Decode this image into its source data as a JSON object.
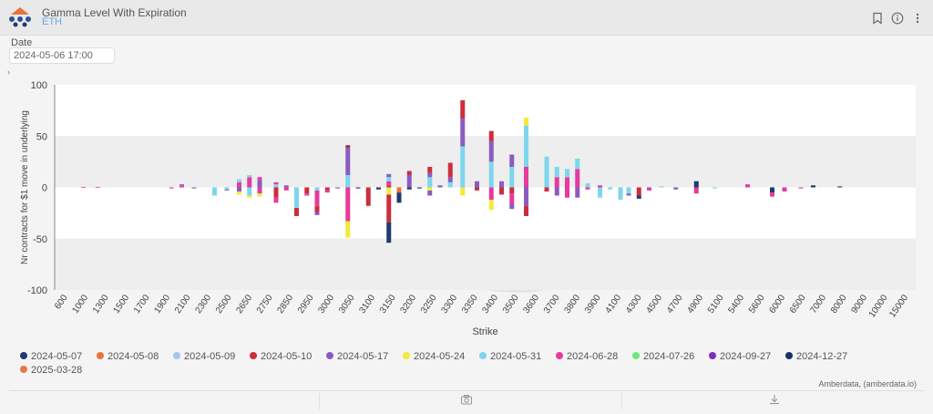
{
  "header": {
    "title": "Gamma Level With Expiration",
    "subtitle": "ETH",
    "icons": [
      "bookmark-icon",
      "info-icon",
      "more-vertical-icon"
    ]
  },
  "date": {
    "label": "Date",
    "value": "2024-05-06 17:00"
  },
  "credit": "Amberdata, (amberdata.io)",
  "footer": {
    "icons": [
      "camera-icon",
      "download-icon"
    ]
  },
  "chart_data": {
    "type": "bar",
    "stacked": true,
    "xlabel": "Strike",
    "ylabel": "Nr contracts for $1 move in underlying",
    "ylim": [
      -100,
      100
    ],
    "yticks": [
      100,
      50,
      0,
      -50,
      -100
    ],
    "categories": [
      "600",
      "1000",
      "1300",
      "1500",
      "1700",
      "1900",
      "2100",
      "2300",
      "2500",
      "2650",
      "2750",
      "2850",
      "2950",
      "3000",
      "3050",
      "3100",
      "3150",
      "3200",
      "3250",
      "3300",
      "3350",
      "3400",
      "3500",
      "3600",
      "3700",
      "3800",
      "3900",
      "4100",
      "4300",
      "4500",
      "4700",
      "4900",
      "5100",
      "5400",
      "5600",
      "6000",
      "6500",
      "7000",
      "8000",
      "9000",
      "10000",
      "15000"
    ],
    "legend": [
      "2024-05-07",
      "2024-05-08",
      "2024-05-09",
      "2024-05-10",
      "2024-05-17",
      "2024-05-24",
      "2024-05-31",
      "2024-06-28",
      "2024-07-26",
      "2024-09-27",
      "2024-12-27",
      "2025-03-28"
    ],
    "colors": {
      "2024-05-07": "#1f3a6e",
      "2024-05-08": "#e8743b",
      "2024-05-09": "#a3c6f0",
      "2024-05-10": "#cc2e3e",
      "2024-05-17": "#8a5cc0",
      "2024-05-24": "#f2ea3c",
      "2024-05-31": "#7dd6ee",
      "2024-06-28": "#e63a9e",
      "2024-07-26": "#6ee87a",
      "2024-09-27": "#7a2fc0",
      "2024-12-27": "#1a3260",
      "2025-03-28": "#e8784a"
    },
    "bars": [
      {
        "x": 1.4,
        "segs": [
          [
            "2024-06-28",
            0.5
          ]
        ]
      },
      {
        "x": 2.1,
        "segs": [
          [
            "2024-06-28",
            0.5
          ]
        ]
      },
      {
        "x": 5.7,
        "segs": [
          [
            "2024-06-28",
            -1.0
          ]
        ]
      },
      {
        "x": 6.2,
        "segs": [
          [
            "2024-06-28",
            2
          ],
          [
            "2024-05-17",
            1
          ]
        ]
      },
      {
        "x": 6.8,
        "segs": [
          [
            "2024-05-17",
            -1.0
          ]
        ]
      },
      {
        "x": 7.8,
        "segs": [
          [
            "2024-05-31",
            -8
          ]
        ]
      },
      {
        "x": 8.4,
        "segs": [
          [
            "2024-05-31",
            -2
          ],
          [
            "2024-05-17",
            -1
          ]
        ]
      },
      {
        "x": 9.0,
        "segs": [
          [
            "2024-06-28",
            5
          ],
          [
            "2024-05-31",
            3
          ],
          [
            "2024-05-17",
            -4
          ],
          [
            "2024-05-24",
            -3
          ]
        ]
      },
      {
        "x": 9.5,
        "segs": [
          [
            "2024-06-28",
            10
          ],
          [
            "2024-05-31",
            2
          ],
          [
            "2024-05-31",
            -8
          ],
          [
            "2024-05-24",
            -2
          ]
        ]
      },
      {
        "x": 10.0,
        "segs": [
          [
            "2024-05-17",
            7
          ],
          [
            "2024-06-28",
            3
          ],
          [
            "2024-06-28",
            -6
          ],
          [
            "2024-05-24",
            -3
          ]
        ]
      },
      {
        "x": 10.8,
        "segs": [
          [
            "2024-05-31",
            3
          ],
          [
            "2024-06-28",
            2
          ],
          [
            "2024-05-10",
            -10
          ],
          [
            "2024-06-28",
            -5
          ]
        ]
      },
      {
        "x": 11.3,
        "segs": [
          [
            "2024-05-17",
            2
          ],
          [
            "2024-06-28",
            -3
          ]
        ]
      },
      {
        "x": 11.8,
        "segs": [
          [
            "2024-05-31",
            -20
          ],
          [
            "2024-05-10",
            -8
          ]
        ]
      },
      {
        "x": 12.3,
        "segs": [
          [
            "2024-05-10",
            -6
          ],
          [
            "2024-06-28",
            -2
          ]
        ]
      },
      {
        "x": 12.8,
        "segs": [
          [
            "2024-05-31",
            -3
          ],
          [
            "2024-06-28",
            -15
          ],
          [
            "2024-05-10",
            -6
          ],
          [
            "2024-05-17",
            -3
          ]
        ]
      },
      {
        "x": 13.3,
        "segs": [
          [
            "2024-05-10",
            -3
          ],
          [
            "2024-06-28",
            -2
          ]
        ]
      },
      {
        "x": 13.8,
        "segs": [
          [
            "2024-05-17",
            -1
          ]
        ]
      },
      {
        "x": 14.3,
        "segs": [
          [
            "2024-05-31",
            12
          ],
          [
            "2024-05-17",
            26
          ],
          [
            "2024-05-10",
            2
          ],
          [
            "2024-12-27",
            1
          ],
          [
            "2024-06-28",
            -33
          ],
          [
            "2024-05-24",
            -16
          ]
        ]
      },
      {
        "x": 14.8,
        "segs": [
          [
            "2024-05-07",
            -1
          ]
        ]
      },
      {
        "x": 15.3,
        "segs": [
          [
            "2024-05-10",
            -18
          ]
        ]
      },
      {
        "x": 15.8,
        "segs": [
          [
            "2024-05-07",
            -2
          ]
        ]
      },
      {
        "x": 16.3,
        "segs": [
          [
            "2024-05-10",
            2
          ],
          [
            "2024-06-28",
            4
          ],
          [
            "2024-05-31",
            4
          ],
          [
            "2024-05-17",
            3
          ],
          [
            "2024-05-24",
            -7
          ],
          [
            "2024-05-10",
            -27
          ],
          [
            "2024-05-07",
            -20
          ]
        ]
      },
      {
        "x": 16.8,
        "segs": [
          [
            "2024-05-08",
            -5
          ],
          [
            "2024-05-07",
            -10
          ]
        ]
      },
      {
        "x": 17.3,
        "segs": [
          [
            "2024-05-17",
            12
          ],
          [
            "2024-05-10",
            4
          ],
          [
            "2024-05-07",
            -2
          ]
        ]
      },
      {
        "x": 17.8,
        "segs": [
          [
            "2024-05-07",
            -1
          ]
        ]
      },
      {
        "x": 18.3,
        "segs": [
          [
            "2024-05-31",
            10
          ],
          [
            "2024-05-17",
            4
          ],
          [
            "2024-05-10",
            6
          ],
          [
            "2024-05-24",
            -3
          ],
          [
            "2024-05-17",
            -5
          ]
        ]
      },
      {
        "x": 18.8,
        "segs": [
          [
            "2024-05-17",
            2
          ]
        ]
      },
      {
        "x": 19.3,
        "segs": [
          [
            "2024-05-31",
            5
          ],
          [
            "2024-05-17",
            5
          ],
          [
            "2024-05-10",
            14
          ]
        ]
      },
      {
        "x": 19.9,
        "segs": [
          [
            "2024-05-31",
            40
          ],
          [
            "2024-05-17",
            27
          ],
          [
            "2024-05-10",
            18
          ],
          [
            "2024-05-24",
            -8
          ]
        ]
      },
      {
        "x": 20.6,
        "segs": [
          [
            "2024-05-17",
            6
          ],
          [
            "2024-05-10",
            -3
          ]
        ]
      },
      {
        "x": 21.3,
        "segs": [
          [
            "2024-05-31",
            25
          ],
          [
            "2024-05-17",
            20
          ],
          [
            "2024-05-10",
            10
          ],
          [
            "2024-06-28",
            -12
          ],
          [
            "2024-05-24",
            -10
          ]
        ]
      },
      {
        "x": 21.8,
        "segs": [
          [
            "2024-05-17",
            6
          ],
          [
            "2024-05-10",
            -7
          ]
        ]
      },
      {
        "x": 22.3,
        "segs": [
          [
            "2024-05-31",
            20
          ],
          [
            "2024-05-17",
            12
          ],
          [
            "2024-05-10",
            -6
          ],
          [
            "2024-06-28",
            -10
          ],
          [
            "2024-05-17",
            -5
          ]
        ]
      },
      {
        "x": 23.0,
        "segs": [
          [
            "2024-06-28",
            20
          ],
          [
            "2024-05-31",
            40
          ],
          [
            "2024-05-24",
            8
          ],
          [
            "2024-05-17",
            -18
          ],
          [
            "2024-05-10",
            -10
          ]
        ]
      },
      {
        "x": 24.0,
        "segs": [
          [
            "2024-05-31",
            30
          ],
          [
            "2024-05-10",
            -4
          ]
        ]
      },
      {
        "x": 24.5,
        "segs": [
          [
            "2024-06-28",
            10
          ],
          [
            "2024-05-31",
            10
          ],
          [
            "2024-05-17",
            -8
          ]
        ]
      },
      {
        "x": 25.0,
        "segs": [
          [
            "2024-06-28",
            10
          ],
          [
            "2024-05-31",
            8
          ],
          [
            "2024-06-28",
            -10
          ]
        ]
      },
      {
        "x": 25.5,
        "segs": [
          [
            "2024-06-28",
            18
          ],
          [
            "2024-05-31",
            10
          ],
          [
            "2024-05-17",
            -10
          ]
        ]
      },
      {
        "x": 26.0,
        "segs": [
          [
            "2024-05-31",
            4
          ],
          [
            "2024-06-28",
            -2
          ]
        ]
      },
      {
        "x": 26.6,
        "segs": [
          [
            "2024-06-28",
            2
          ],
          [
            "2024-05-31",
            -10
          ]
        ]
      },
      {
        "x": 27.1,
        "segs": [
          [
            "2024-05-31",
            -2
          ]
        ]
      },
      {
        "x": 27.6,
        "segs": [
          [
            "2024-05-31",
            -12
          ]
        ]
      },
      {
        "x": 28.0,
        "segs": [
          [
            "2024-05-31",
            -6
          ],
          [
            "2024-05-17",
            -2
          ]
        ]
      },
      {
        "x": 28.5,
        "segs": [
          [
            "2024-05-10",
            -8
          ],
          [
            "2024-05-07",
            -3
          ]
        ]
      },
      {
        "x": 29.0,
        "segs": [
          [
            "2024-06-28",
            -3
          ]
        ]
      },
      {
        "x": 29.6,
        "segs": [
          [
            "2024-05-31",
            1
          ]
        ]
      },
      {
        "x": 30.3,
        "segs": [
          [
            "2024-05-17",
            -2
          ]
        ]
      },
      {
        "x": 31.3,
        "segs": [
          [
            "2024-05-07",
            6
          ],
          [
            "2024-06-28",
            -6
          ]
        ]
      },
      {
        "x": 32.2,
        "segs": [
          [
            "2024-05-31",
            -1
          ]
        ]
      },
      {
        "x": 33.8,
        "segs": [
          [
            "2024-06-28",
            3
          ]
        ]
      },
      {
        "x": 35.0,
        "segs": [
          [
            "2024-05-07",
            -5
          ],
          [
            "2024-06-28",
            -4
          ]
        ]
      },
      {
        "x": 35.6,
        "segs": [
          [
            "2024-06-28",
            -4
          ]
        ]
      },
      {
        "x": 36.4,
        "segs": [
          [
            "2024-06-28",
            -1
          ]
        ]
      },
      {
        "x": 37.0,
        "segs": [
          [
            "2024-05-07",
            2
          ]
        ]
      },
      {
        "x": 38.3,
        "segs": [
          [
            "2024-05-07",
            1
          ]
        ]
      }
    ]
  }
}
